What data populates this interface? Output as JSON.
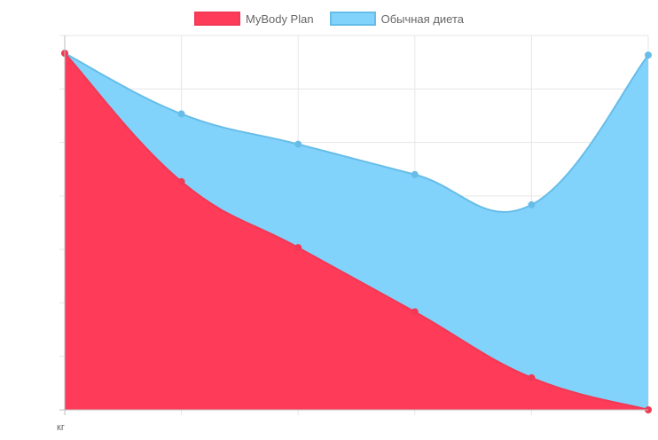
{
  "chart_data": {
    "type": "area",
    "x": [
      "",
      "",
      "",
      "",
      "",
      ""
    ],
    "series": [
      {
        "name": "Обычная диета",
        "values": [
          100,
          83,
          74.5,
          66,
          57.5,
          99.5
        ],
        "fill": "#82d3fc",
        "stroke": "#66bde8"
      },
      {
        "name": "MyBody Plan",
        "values": [
          100,
          64,
          45.5,
          27.5,
          9,
          0
        ],
        "fill": "#fe3b59",
        "stroke": "#f03a55"
      }
    ],
    "ylabel": "кг",
    "ylim": [
      0,
      105
    ],
    "grid": true,
    "legend": "top-center",
    "stacked": false
  },
  "legend": [
    {
      "label": "MyBody Plan",
      "color": "#fe3b59",
      "border": "#f03a55"
    },
    {
      "label": "Обычная диета",
      "color": "#82d3fc",
      "border": "#66bde8"
    }
  ],
  "axis": {
    "y_unit": "кг"
  }
}
